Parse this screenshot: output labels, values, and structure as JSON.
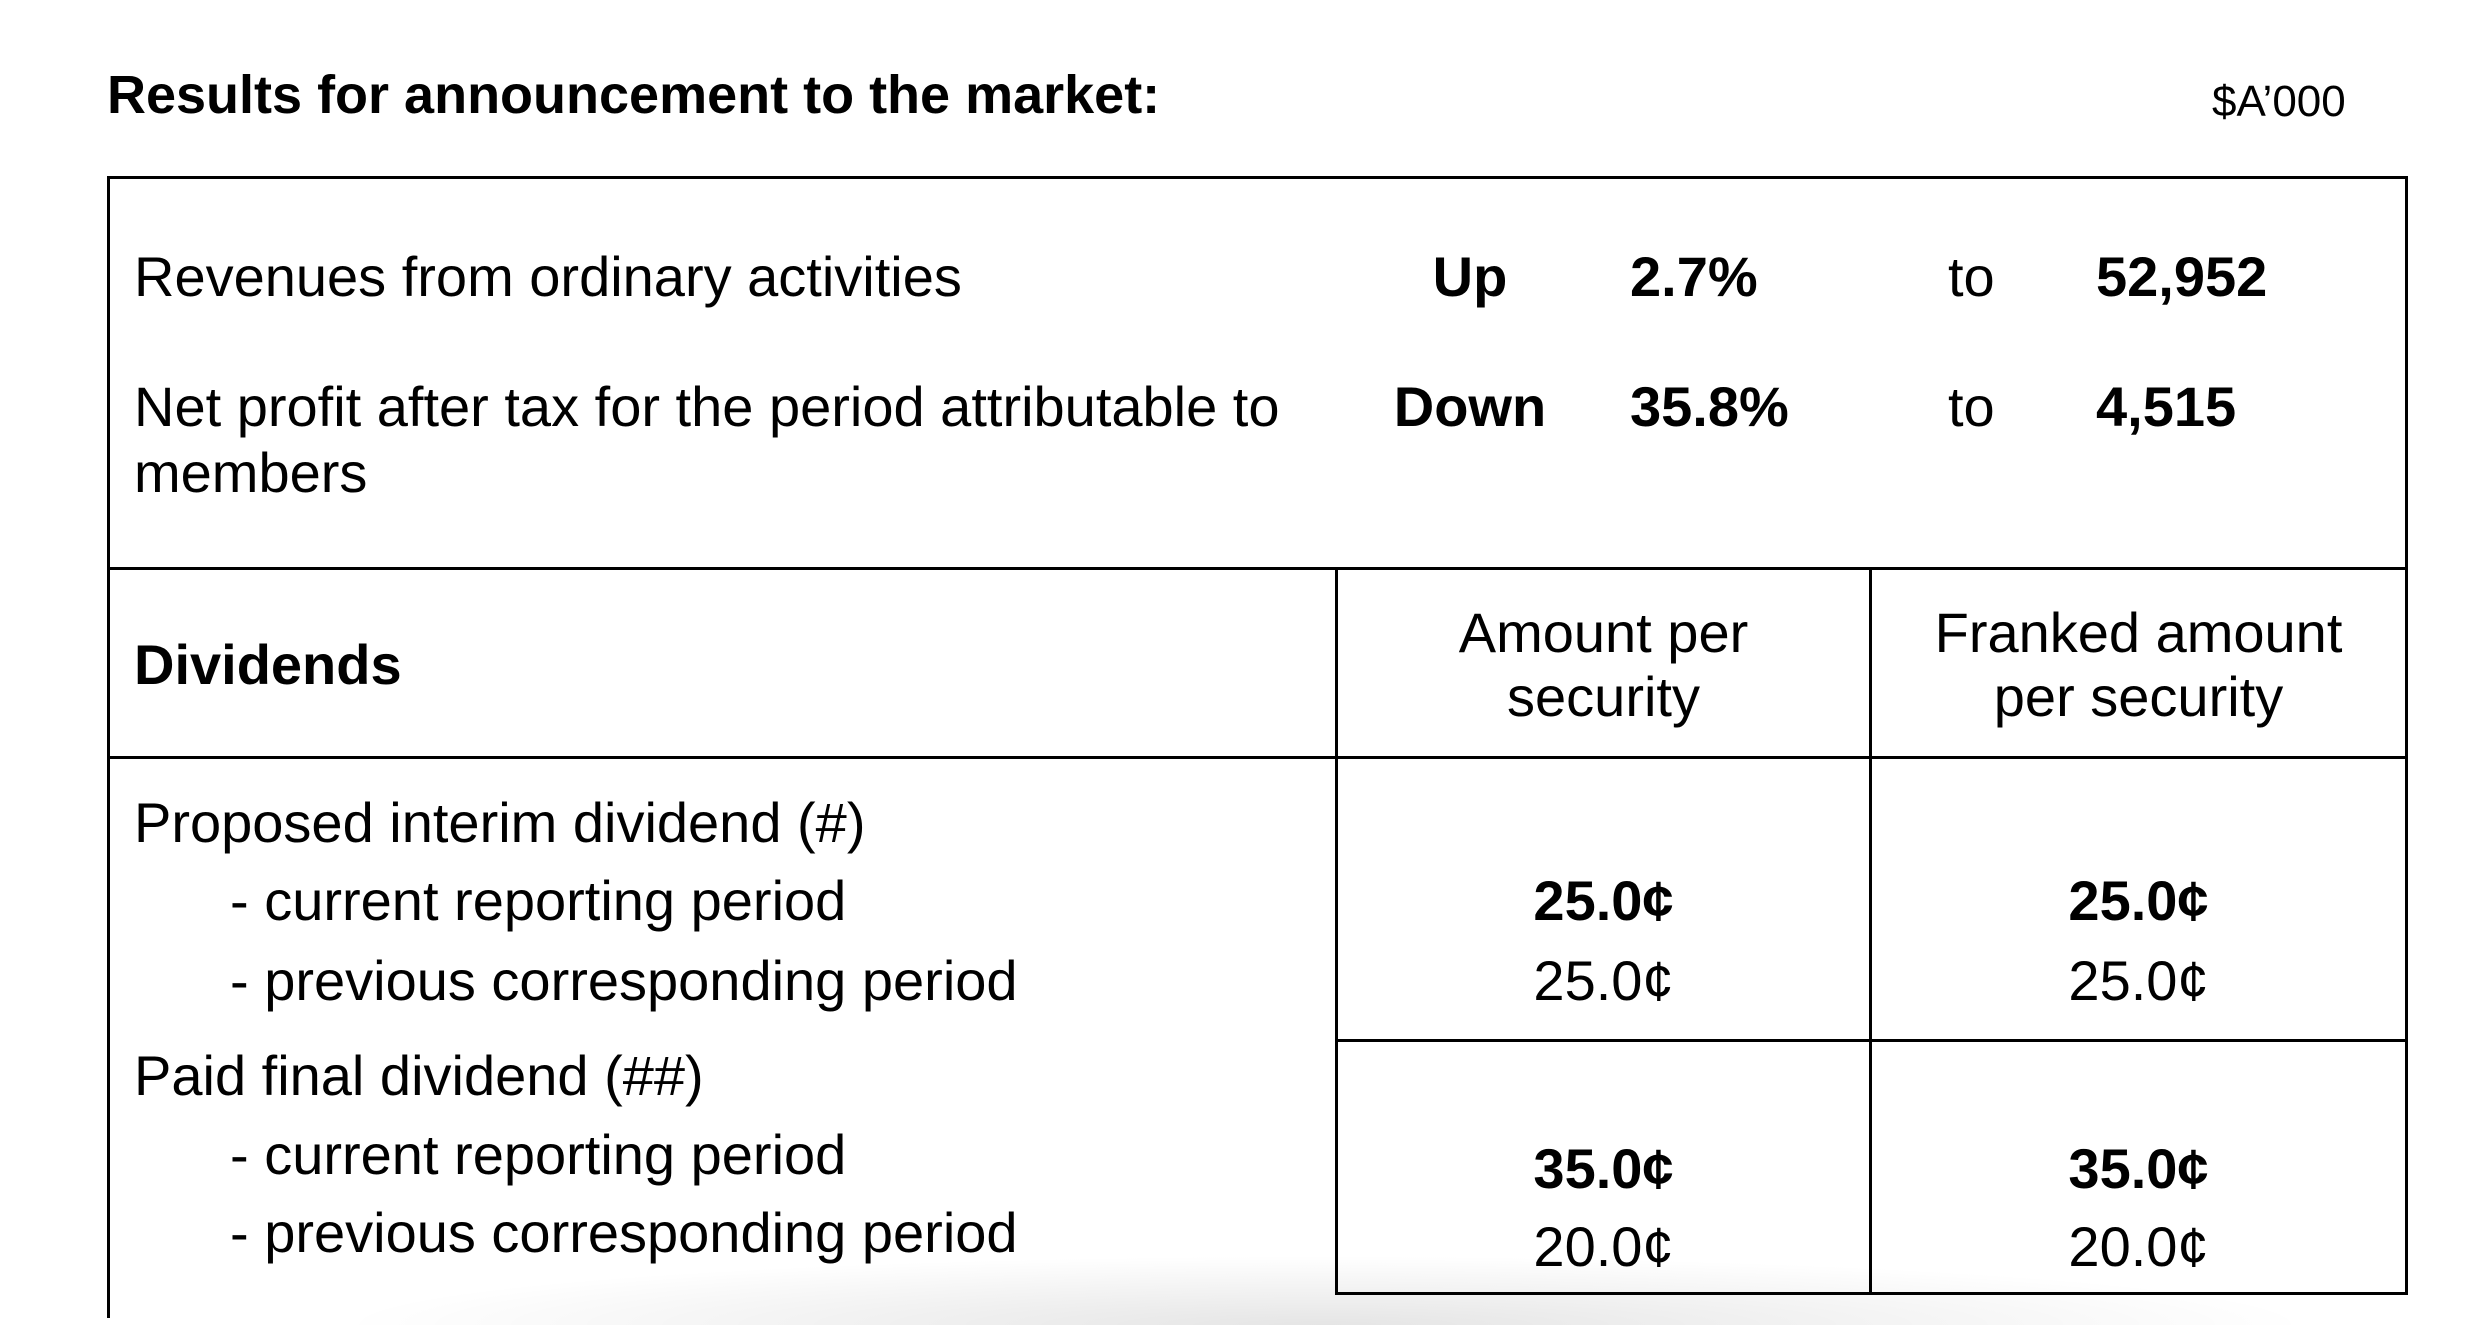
{
  "header": {
    "title": "Results for announcement to the market:",
    "unit": "$A’000"
  },
  "results": [
    {
      "label": "Revenues from ordinary activities",
      "direction": "Up",
      "change": "2.7%",
      "to": "to",
      "value": "52,952"
    },
    {
      "label_line1": "Net profit after tax for the period attributable to",
      "label_line2": "members",
      "direction": "Down",
      "change": "35.8%",
      "to": "to",
      "value": "4,515"
    }
  ],
  "dividends": {
    "title": "Dividends",
    "col_amount_line1": "Amount per",
    "col_amount_line2": "security",
    "col_franked_line1": "Franked amount",
    "col_franked_line2": "per security",
    "groups": [
      {
        "label": "Proposed interim dividend (#)",
        "current_label": "- current reporting period",
        "previous_label": "- previous corresponding period",
        "amount_current": "25.0¢",
        "amount_previous": "25.0¢",
        "franked_current": "25.0¢",
        "franked_previous": "25.0¢"
      },
      {
        "label": "Paid final dividend (##)",
        "current_label": "- current reporting period",
        "previous_label": "- previous corresponding period",
        "amount_current": "35.0¢",
        "amount_previous": "20.0¢",
        "franked_current": "35.0¢",
        "franked_previous": "20.0¢"
      }
    ]
  }
}
